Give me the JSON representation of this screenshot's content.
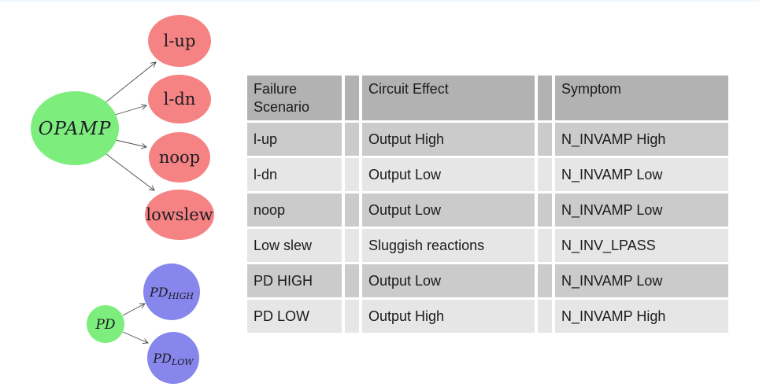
{
  "page": {
    "background": "#ffffff",
    "top_strip_color": "#e9f3fc"
  },
  "colors": {
    "node_green": "#7dee7d",
    "node_red": "#f58383",
    "node_blue": "#8686ec",
    "edge_gray": "#4a4a4a",
    "table_header_bg": "#b2b2b2",
    "table_row_even_bg": "#cbcbcb",
    "table_row_odd_bg": "#e6e6e6"
  },
  "diagram": {
    "opamp_tree": {
      "root_label": "OPAMP",
      "child_lup": "l-up",
      "child_ldn": "l-dn",
      "child_noop": "noop",
      "child_lowslew": "lowslew"
    },
    "pd_tree": {
      "root_label": "PD",
      "child_high_main": "PD",
      "child_high_sub": "HIGH",
      "child_low_main": "PD",
      "child_low_sub": "LOW"
    }
  },
  "table": {
    "headers": [
      "Failure Scenario",
      "Circuit Effect",
      "Symptom"
    ],
    "rows": [
      [
        "l-up",
        "Output High",
        "N_INVAMP High"
      ],
      [
        "l-dn",
        "Output Low",
        "N_INVAMP Low"
      ],
      [
        "noop",
        "Output Low",
        "N_INVAMP Low"
      ],
      [
        "Low slew",
        "Sluggish reactions",
        "N_INV_LPASS"
      ],
      [
        "PD HIGH",
        "Output Low",
        "N_INVAMP Low"
      ],
      [
        "PD LOW",
        "Output High",
        "N_INVAMP High"
      ]
    ]
  }
}
